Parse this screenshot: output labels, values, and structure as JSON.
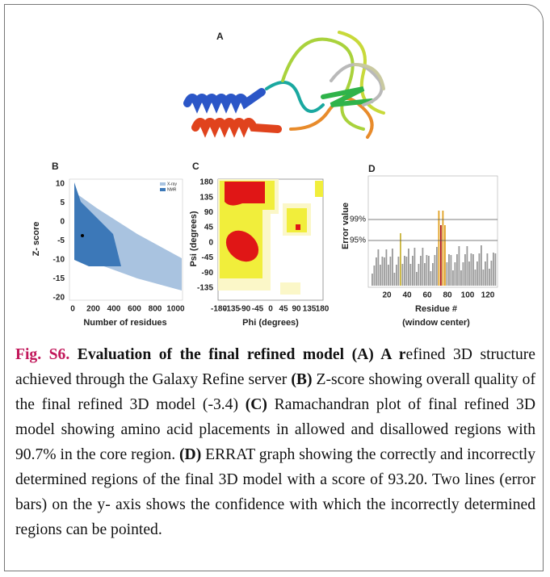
{
  "figure": {
    "panel_a": {
      "label": "A"
    },
    "panel_b": {
      "label": "B",
      "y_label": "Z- score",
      "x_label": "Number of residues",
      "yticks": [
        "10",
        "5",
        "0",
        "-5",
        "-10",
        "-15",
        "-20"
      ],
      "xticks": [
        "0",
        "200",
        "400",
        "600",
        "800",
        "1000"
      ],
      "legend": [
        "X-ray",
        "NMR"
      ]
    },
    "panel_c": {
      "label": "C",
      "y_label": "Psi (degrees)",
      "x_label": "Phi (degrees)",
      "yticks": [
        "180",
        "135",
        "90",
        "45",
        "0",
        "-45",
        "-90",
        "-135"
      ],
      "xticks": [
        "-180",
        "-135",
        "-90",
        "-45",
        "0",
        "45",
        "90",
        "135",
        "180"
      ]
    },
    "panel_d": {
      "label": "D",
      "y_label": "Error value",
      "x_label": "Residue #",
      "x_sublabel": "(window center)",
      "lines": [
        "99%",
        "95%"
      ],
      "xticks": [
        "20",
        "40",
        "60",
        "80",
        "100",
        "120"
      ]
    }
  },
  "caption": {
    "fig_label": "Fig. S6.",
    "parts": [
      {
        "bold": true,
        "text": " Evaluation of the final refined model (A) A r"
      },
      {
        "bold": false,
        "text": "efined 3D structure achieved through the Galaxy Refine server "
      },
      {
        "bold": true,
        "text": "(B)"
      },
      {
        "bold": false,
        "text": " Z-score showing overall quality of the final refined 3D model (-3.4) "
      },
      {
        "bold": true,
        "text": "(C)"
      },
      {
        "bold": false,
        "text": " Ramachandran plot of final refined 3D model showing amino acid placements in allowed and disallowed regions with 90.7% in the core region. "
      },
      {
        "bold": true,
        "text": "(D)"
      },
      {
        "bold": false,
        "text": " ERRAT graph showing the correctly and incorrectly determined regions of the final 3D model with a score of 93.20. Two lines (error bars) on the y- axis shows the confidence with which the incorrectly determined regions can be pointed."
      }
    ]
  }
}
